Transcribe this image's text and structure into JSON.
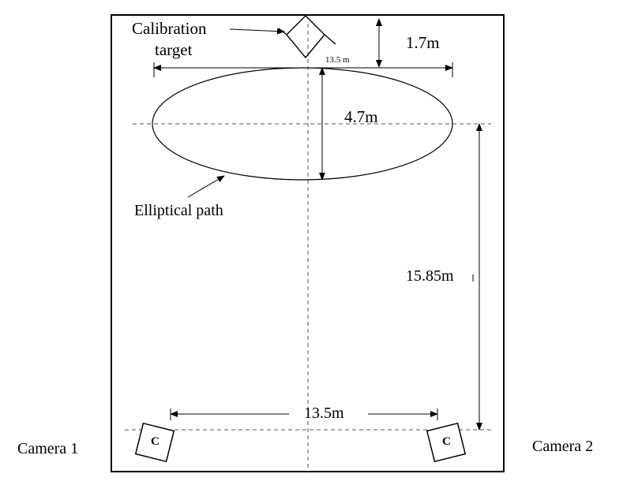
{
  "labels": {
    "calibration_line1": "Calibration",
    "calibration_line2": "target",
    "top_gap": "1.7m",
    "ellipse_width_top": "13.5 m",
    "ellipse_height": "4.7m",
    "path_label": "Elliptical path",
    "vertical_distance": "15.85m",
    "camera_spacing": "13.5m",
    "camera1": "Camera 1",
    "camera2": "Camera 2",
    "camera_marker": "C"
  },
  "colors": {
    "ink": "#000000",
    "background": "#ffffff"
  }
}
